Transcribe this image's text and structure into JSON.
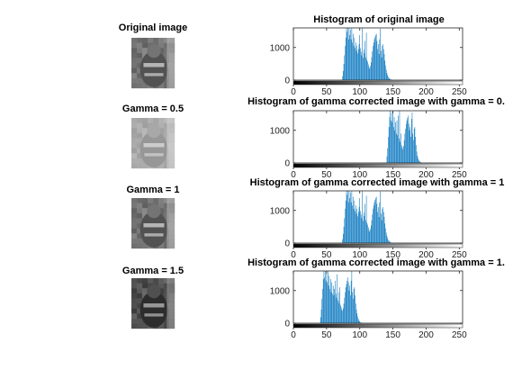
{
  "chart_data": [
    {
      "type": "image",
      "title": "Original image",
      "tone": {
        "min": 55,
        "peak": 100,
        "max": 190
      }
    },
    {
      "type": "bar",
      "title": "Histogram of original image",
      "xlim": [
        0,
        255
      ],
      "ylim": [
        0,
        1600
      ],
      "xticks": [
        0,
        50,
        100,
        150,
        200,
        250
      ],
      "yticks": [
        0,
        1000
      ],
      "bar_color": "#0072bd",
      "bins": [
        [
          73,
          0
        ],
        [
          74,
          120
        ],
        [
          75,
          280
        ],
        [
          76,
          500
        ],
        [
          77,
          760
        ],
        [
          78,
          1050
        ],
        [
          79,
          1300
        ],
        [
          80,
          1600
        ],
        [
          81,
          1480
        ],
        [
          82,
          1600
        ],
        [
          83,
          1250
        ],
        [
          84,
          1600
        ],
        [
          85,
          1380
        ],
        [
          86,
          1550
        ],
        [
          87,
          1250
        ],
        [
          88,
          1600
        ],
        [
          89,
          1150
        ],
        [
          90,
          1420
        ],
        [
          91,
          1050
        ],
        [
          92,
          1300
        ],
        [
          93,
          980
        ],
        [
          94,
          1150
        ],
        [
          95,
          900
        ],
        [
          96,
          1050
        ],
        [
          97,
          820
        ],
        [
          98,
          950
        ],
        [
          99,
          1100
        ],
        [
          100,
          1380
        ],
        [
          101,
          980
        ],
        [
          102,
          870
        ],
        [
          103,
          760
        ],
        [
          104,
          1600
        ],
        [
          105,
          680
        ],
        [
          106,
          940
        ],
        [
          107,
          830
        ],
        [
          108,
          1200
        ],
        [
          109,
          700
        ],
        [
          110,
          1450
        ],
        [
          111,
          620
        ],
        [
          112,
          560
        ],
        [
          113,
          480
        ],
        [
          114,
          400
        ],
        [
          115,
          350
        ],
        [
          116,
          430
        ],
        [
          117,
          540
        ],
        [
          118,
          700
        ],
        [
          119,
          880
        ],
        [
          120,
          1050
        ],
        [
          121,
          1150
        ],
        [
          122,
          1250
        ],
        [
          123,
          1320
        ],
        [
          124,
          1380
        ],
        [
          125,
          1420
        ],
        [
          126,
          1200
        ],
        [
          127,
          950
        ],
        [
          128,
          1100
        ],
        [
          129,
          800
        ],
        [
          130,
          1250
        ],
        [
          131,
          1580
        ],
        [
          132,
          900
        ],
        [
          133,
          700
        ],
        [
          134,
          1050
        ],
        [
          135,
          1100
        ],
        [
          136,
          950
        ],
        [
          137,
          800
        ],
        [
          138,
          600
        ],
        [
          139,
          450
        ],
        [
          140,
          320
        ],
        [
          141,
          220
        ],
        [
          142,
          150
        ],
        [
          143,
          100
        ],
        [
          144,
          70
        ],
        [
          145,
          45
        ],
        [
          146,
          30
        ],
        [
          147,
          20
        ],
        [
          148,
          12
        ],
        [
          149,
          8
        ],
        [
          150,
          5
        ]
      ]
    },
    {
      "type": "image",
      "title": "Gamma = 0.5",
      "tone": {
        "min": 130,
        "peak": 165,
        "max": 215
      }
    },
    {
      "type": "bar",
      "title": "Histogram of gamma corrected image with gamma = 0.",
      "xlim": [
        0,
        255
      ],
      "ylim": [
        0,
        1600
      ],
      "xticks": [
        0,
        50,
        100,
        150,
        200,
        250
      ],
      "yticks": [
        0,
        1000
      ],
      "bar_color": "#0072bd",
      "bins": [
        [
          140,
          0
        ],
        [
          141,
          200
        ],
        [
          142,
          450
        ],
        [
          143,
          800
        ],
        [
          144,
          1100
        ],
        [
          145,
          1400
        ],
        [
          146,
          1600
        ],
        [
          147,
          1300
        ],
        [
          148,
          1550
        ],
        [
          149,
          1250
        ],
        [
          150,
          1600
        ],
        [
          151,
          1100
        ],
        [
          152,
          1400
        ],
        [
          153,
          1000
        ],
        [
          154,
          1250
        ],
        [
          155,
          900
        ],
        [
          156,
          1300
        ],
        [
          157,
          850
        ],
        [
          158,
          1450
        ],
        [
          159,
          750
        ],
        [
          160,
          1600
        ],
        [
          161,
          650
        ],
        [
          162,
          900
        ],
        [
          163,
          550
        ],
        [
          164,
          480
        ],
        [
          165,
          420
        ],
        [
          166,
          520
        ],
        [
          167,
          700
        ],
        [
          168,
          900
        ],
        [
          169,
          1050
        ],
        [
          170,
          1200
        ],
        [
          171,
          1300
        ],
        [
          172,
          1380
        ],
        [
          173,
          1450
        ],
        [
          174,
          1200
        ],
        [
          175,
          1000
        ],
        [
          176,
          1100
        ],
        [
          177,
          800
        ],
        [
          178,
          1350
        ],
        [
          179,
          1550
        ],
        [
          180,
          900
        ],
        [
          181,
          700
        ],
        [
          182,
          1050
        ],
        [
          183,
          1100
        ],
        [
          184,
          800
        ],
        [
          185,
          550
        ],
        [
          186,
          350
        ],
        [
          187,
          220
        ],
        [
          188,
          140
        ],
        [
          189,
          90
        ],
        [
          190,
          55
        ],
        [
          191,
          30
        ],
        [
          192,
          18
        ],
        [
          193,
          10
        ],
        [
          194,
          5
        ]
      ]
    },
    {
      "type": "image",
      "title": "Gamma = 1",
      "tone": {
        "min": 55,
        "peak": 100,
        "max": 190
      }
    },
    {
      "type": "bar",
      "title": "Histogram of gamma corrected image with gamma = 1",
      "xlim": [
        0,
        255
      ],
      "ylim": [
        0,
        1600
      ],
      "xticks": [
        0,
        50,
        100,
        150,
        200,
        250
      ],
      "yticks": [
        0,
        1000
      ],
      "bar_color": "#0072bd",
      "bins": [
        [
          73,
          0
        ],
        [
          74,
          120
        ],
        [
          75,
          280
        ],
        [
          76,
          500
        ],
        [
          77,
          760
        ],
        [
          78,
          1050
        ],
        [
          79,
          1300
        ],
        [
          80,
          1600
        ],
        [
          81,
          1480
        ],
        [
          82,
          1600
        ],
        [
          83,
          1250
        ],
        [
          84,
          1600
        ],
        [
          85,
          1380
        ],
        [
          86,
          1550
        ],
        [
          87,
          1250
        ],
        [
          88,
          1600
        ],
        [
          89,
          1150
        ],
        [
          90,
          1420
        ],
        [
          91,
          1050
        ],
        [
          92,
          1300
        ],
        [
          93,
          980
        ],
        [
          94,
          1150
        ],
        [
          95,
          900
        ],
        [
          96,
          1050
        ],
        [
          97,
          820
        ],
        [
          98,
          950
        ],
        [
          99,
          1100
        ],
        [
          100,
          1380
        ],
        [
          101,
          980
        ],
        [
          102,
          870
        ],
        [
          103,
          760
        ],
        [
          104,
          1600
        ],
        [
          105,
          680
        ],
        [
          106,
          940
        ],
        [
          107,
          830
        ],
        [
          108,
          1200
        ],
        [
          109,
          700
        ],
        [
          110,
          1450
        ],
        [
          111,
          620
        ],
        [
          112,
          560
        ],
        [
          113,
          480
        ],
        [
          114,
          400
        ],
        [
          115,
          350
        ],
        [
          116,
          430
        ],
        [
          117,
          540
        ],
        [
          118,
          700
        ],
        [
          119,
          880
        ],
        [
          120,
          1050
        ],
        [
          121,
          1150
        ],
        [
          122,
          1250
        ],
        [
          123,
          1320
        ],
        [
          124,
          1380
        ],
        [
          125,
          1420
        ],
        [
          126,
          1200
        ],
        [
          127,
          950
        ],
        [
          128,
          1100
        ],
        [
          129,
          800
        ],
        [
          130,
          1250
        ],
        [
          131,
          1580
        ],
        [
          132,
          900
        ],
        [
          133,
          700
        ],
        [
          134,
          1050
        ],
        [
          135,
          1100
        ],
        [
          136,
          950
        ],
        [
          137,
          800
        ],
        [
          138,
          600
        ],
        [
          139,
          450
        ],
        [
          140,
          320
        ],
        [
          141,
          220
        ],
        [
          142,
          150
        ],
        [
          143,
          100
        ],
        [
          144,
          70
        ],
        [
          145,
          45
        ],
        [
          146,
          30
        ],
        [
          147,
          20
        ],
        [
          148,
          12
        ],
        [
          149,
          8
        ],
        [
          150,
          5
        ]
      ]
    },
    {
      "type": "image",
      "title": "Gamma = 1.5",
      "tone": {
        "min": 15,
        "peak": 65,
        "max": 160
      }
    },
    {
      "type": "bar",
      "title": "Histogram of gamma corrected image with gamma = 1.",
      "xlim": [
        0,
        255
      ],
      "ylim": [
        0,
        1600
      ],
      "xticks": [
        0,
        50,
        100,
        150,
        200,
        250
      ],
      "yticks": [
        0,
        1000
      ],
      "bar_color": "#0072bd",
      "bins": [
        [
          40,
          0
        ],
        [
          41,
          180
        ],
        [
          42,
          420
        ],
        [
          43,
          750
        ],
        [
          44,
          1050
        ],
        [
          45,
          1350
        ],
        [
          46,
          1600
        ],
        [
          47,
          1400
        ],
        [
          48,
          1600
        ],
        [
          49,
          1300
        ],
        [
          50,
          1550
        ],
        [
          51,
          1250
        ],
        [
          52,
          1600
        ],
        [
          53,
          1150
        ],
        [
          54,
          1450
        ],
        [
          55,
          1050
        ],
        [
          56,
          1350
        ],
        [
          57,
          950
        ],
        [
          58,
          1250
        ],
        [
          59,
          900
        ],
        [
          60,
          1150
        ],
        [
          61,
          850
        ],
        [
          62,
          1050
        ],
        [
          63,
          1300
        ],
        [
          64,
          900
        ],
        [
          65,
          780
        ],
        [
          66,
          1500
        ],
        [
          67,
          700
        ],
        [
          68,
          950
        ],
        [
          69,
          620
        ],
        [
          70,
          1100
        ],
        [
          71,
          560
        ],
        [
          72,
          500
        ],
        [
          73,
          420
        ],
        [
          74,
          380
        ],
        [
          75,
          460
        ],
        [
          76,
          600
        ],
        [
          77,
          780
        ],
        [
          78,
          950
        ],
        [
          79,
          1100
        ],
        [
          80,
          1200
        ],
        [
          81,
          1300
        ],
        [
          82,
          1400
        ],
        [
          83,
          1250
        ],
        [
          84,
          1000
        ],
        [
          85,
          1150
        ],
        [
          86,
          850
        ],
        [
          87,
          1300
        ],
        [
          88,
          1600
        ],
        [
          89,
          950
        ],
        [
          90,
          750
        ],
        [
          91,
          1050
        ],
        [
          92,
          1100
        ],
        [
          93,
          850
        ],
        [
          94,
          600
        ],
        [
          95,
          420
        ],
        [
          96,
          300
        ],
        [
          97,
          200
        ],
        [
          98,
          130
        ],
        [
          99,
          80
        ],
        [
          100,
          50
        ],
        [
          101,
          30
        ],
        [
          102,
          18
        ],
        [
          103,
          10
        ],
        [
          104,
          5
        ]
      ]
    }
  ]
}
